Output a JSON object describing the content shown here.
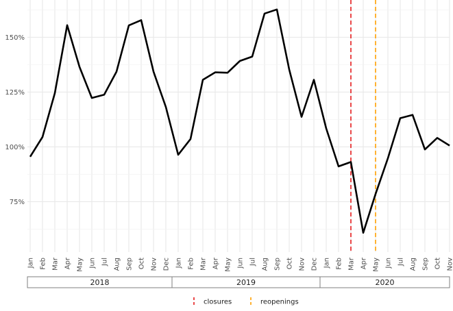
{
  "chart_data": {
    "type": "line",
    "x": [
      "Jan",
      "Feb",
      "Mar",
      "Apr",
      "May",
      "Jun",
      "Jul",
      "Aug",
      "Sep",
      "Oct",
      "Nov",
      "Dec",
      "Jan",
      "Feb",
      "Mar",
      "Apr",
      "May",
      "Jun",
      "Jul",
      "Aug",
      "Sep",
      "Oct",
      "Nov",
      "Dec",
      "Jan",
      "Feb",
      "Mar",
      "Apr",
      "May",
      "Jun",
      "Jul",
      "Aug",
      "Sep",
      "Oct",
      "Nov"
    ],
    "years": [
      {
        "label": "2018",
        "start": 0,
        "end": 11
      },
      {
        "label": "2019",
        "start": 12,
        "end": 23
      },
      {
        "label": "2020",
        "start": 24,
        "end": 34
      }
    ],
    "values": [
      95.5,
      104.5,
      124.5,
      155.5,
      136.5,
      122.3,
      123.8,
      134.3,
      155.4,
      157.8,
      134.3,
      118.2,
      96.4,
      103.6,
      130.6,
      134.0,
      133.8,
      139.2,
      141.2,
      160.8,
      162.7,
      135.3,
      113.7,
      130.6,
      108.4,
      91.1,
      93.1,
      60.8,
      78.5,
      94.8,
      113.1,
      114.6,
      98.8,
      104.1,
      100.6
    ],
    "y_ticks": [
      75,
      100,
      125,
      150
    ],
    "y_tick_labels": [
      "75%",
      "100%",
      "125%",
      "150%"
    ],
    "ylim": [
      52,
      167
    ],
    "vlines": [
      {
        "name": "closures",
        "x_index": 26,
        "color": "#e41a1c"
      },
      {
        "name": "reopenings",
        "x_index": 28,
        "color": "#ff9f00"
      }
    ],
    "line_color": "#000000",
    "legend_position": "bottom",
    "grid": true
  }
}
